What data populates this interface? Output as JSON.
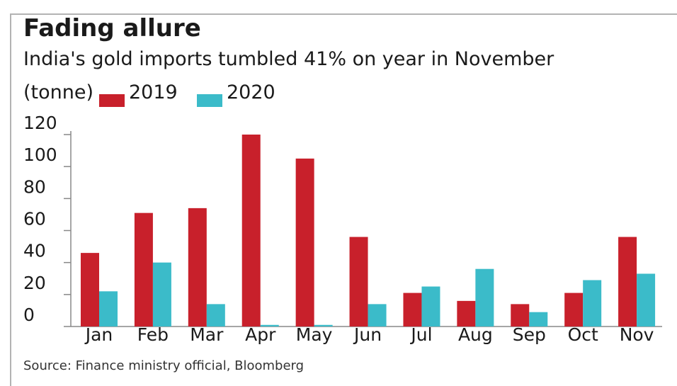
{
  "title": "Fading allure",
  "subtitle": "India's gold imports tumbled 41% on year in November",
  "source": "Source: Finance ministry official, Bloomberg",
  "colors": {
    "series_2019": "#c8202b",
    "series_2020": "#3bbbc9",
    "axis": "#888888"
  },
  "chart_data": {
    "type": "bar",
    "unit": "(tonne)",
    "categories": [
      "Jan",
      "Feb",
      "Mar",
      "Apr",
      "May",
      "Jun",
      "Jul",
      "Aug",
      "Sep",
      "Oct",
      "Nov"
    ],
    "series": [
      {
        "name": "2019",
        "values": [
          46,
          71,
          74,
          120,
          105,
          56,
          21,
          16,
          14,
          21,
          56
        ]
      },
      {
        "name": "2020",
        "values": [
          22,
          40,
          14,
          1,
          1,
          14,
          25,
          36,
          9,
          29,
          33
        ]
      }
    ],
    "ylim": [
      0,
      120
    ],
    "yticks": [
      "0",
      "20",
      "40",
      "60",
      "80",
      "100",
      "120"
    ],
    "grid": false,
    "legend_placement": "top-left"
  }
}
